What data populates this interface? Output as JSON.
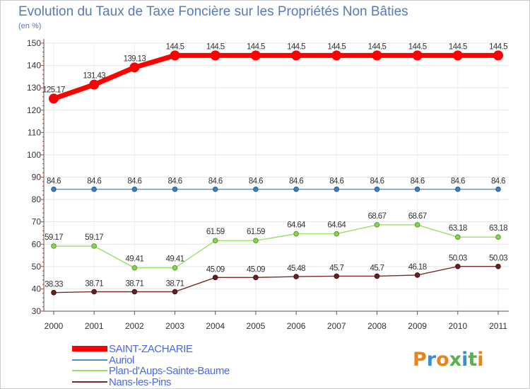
{
  "chart_data": {
    "type": "line",
    "title": "Evolution du Taux de Taxe Foncière sur les Propriétés Non Bâties",
    "subtitle": "(en %)",
    "xlabel": "",
    "ylabel": "",
    "ylim": [
      30,
      150
    ],
    "yticks": [
      30,
      40,
      50,
      60,
      70,
      80,
      90,
      100,
      110,
      120,
      130,
      140,
      150
    ],
    "categories": [
      "2000",
      "2001",
      "2002",
      "2003",
      "2004",
      "2005",
      "2006",
      "2007",
      "2008",
      "2009",
      "2010",
      "2011"
    ],
    "legend_position": "bottom-left",
    "series": [
      {
        "name": "SAINT-ZACHARIE",
        "color": "#ff0000",
        "values": [
          125.17,
          131.43,
          139.13,
          144.5,
          144.5,
          144.5,
          144.5,
          144.5,
          144.5,
          144.5,
          144.5,
          144.5
        ],
        "labels": [
          "125.17",
          "131.43",
          "139.13",
          "144.5",
          "144.5",
          "144.5",
          "144.5",
          "144.5",
          "144.5",
          "144.5",
          "144.5",
          "144.5"
        ]
      },
      {
        "name": "Auriol",
        "color": "#4f8fc6",
        "values": [
          84.6,
          84.6,
          84.6,
          84.6,
          84.6,
          84.6,
          84.6,
          84.6,
          84.6,
          84.6,
          84.6,
          84.6
        ],
        "labels": [
          "84.6",
          "84.6",
          "84.6",
          "84.6",
          "84.6",
          "84.6",
          "84.6",
          "84.6",
          "84.6",
          "84.6",
          "84.6",
          "84.6"
        ]
      },
      {
        "name": "Plan-d'Aups-Sainte-Baume",
        "color": "#99e066",
        "values": [
          59.17,
          59.17,
          49.41,
          49.41,
          61.59,
          61.59,
          64.64,
          64.64,
          68.67,
          68.67,
          63.18,
          63.18
        ],
        "labels": [
          "59.17",
          "59.17",
          "49.41",
          "49.41",
          "61.59",
          "61.59",
          "64.64",
          "64.64",
          "68.67",
          "68.67",
          "63.18",
          "63.18"
        ]
      },
      {
        "name": "Nans-les-Pins",
        "color": "#7a2a2a",
        "values": [
          38.33,
          38.71,
          38.71,
          38.71,
          45.09,
          45.09,
          45.48,
          45.7,
          45.7,
          46.18,
          50.03,
          50.03
        ],
        "labels": [
          "38.33",
          "38.71",
          "38.71",
          "38.71",
          "45.09",
          "45.09",
          "45.48",
          "45.7",
          "45.7",
          "46.18",
          "50.03",
          "50.03"
        ]
      }
    ]
  },
  "logo": {
    "text": "Proxiti"
  }
}
